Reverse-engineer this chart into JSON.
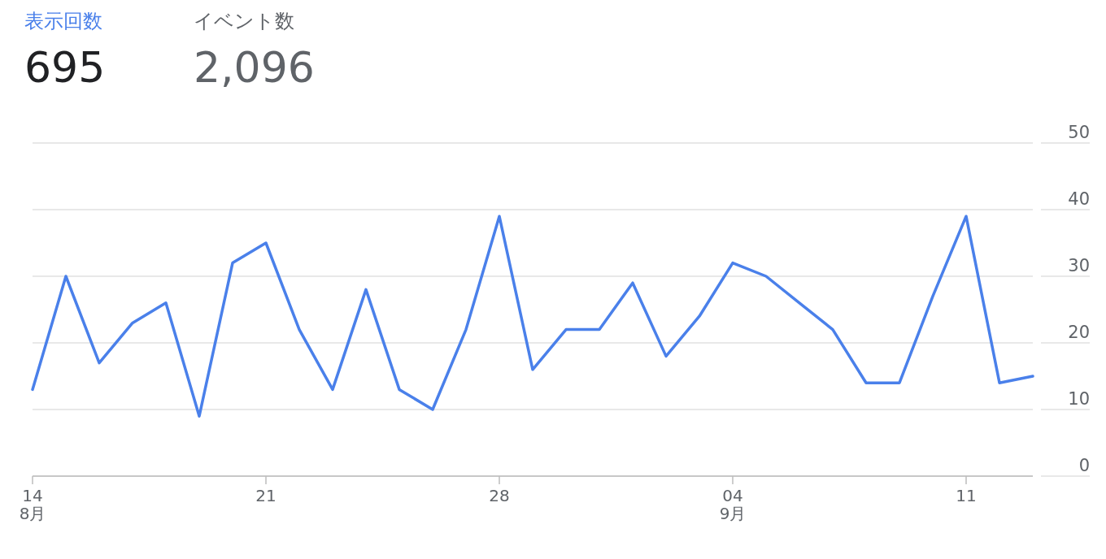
{
  "chart_data": {
    "type": "line",
    "annotations": [
      "表示回数",
      "695",
      "イベント数",
      "2,096"
    ],
    "x": [
      "--08-14",
      "--08-15",
      "--08-16",
      "--08-17",
      "--08-18",
      "--08-19",
      "--08-20",
      "--08-21",
      "--08-22",
      "--08-23",
      "--08-24",
      "--08-25",
      "--08-26",
      "--08-27",
      "--08-28",
      "--08-29",
      "--08-30",
      "--08-31",
      "--09-01",
      "--09-02",
      "--09-03",
      "--09-04",
      "--09-05",
      "--09-06",
      "--09-07",
      "--09-08",
      "--09-09",
      "--09-10",
      "--09-11",
      "--09-12",
      "--09-13"
    ],
    "series": [
      {
        "color": "#4a80ea",
        "values": [
          13,
          30,
          17,
          23,
          26,
          9,
          32,
          35,
          22,
          13,
          28,
          13,
          10,
          22,
          39,
          16,
          22,
          22,
          29,
          18,
          24,
          32,
          30,
          26,
          22,
          14,
          14,
          27,
          39,
          14,
          15
        ]
      }
    ],
    "xlim": [
      "--08-14",
      "--09-13"
    ],
    "xticks": [
      {
        "value": "--08-14",
        "label": "14\n8月"
      },
      {
        "value": "--08-21",
        "label": "21"
      },
      {
        "value": "--08-28",
        "label": "28"
      },
      {
        "value": "--09-04",
        "label": "04\n9月"
      },
      {
        "value": "--09-11",
        "label": "11"
      }
    ],
    "ylim": [
      0,
      50
    ],
    "yticks": [
      0,
      10,
      20,
      30,
      40,
      50
    ],
    "grid": "y",
    "line_style": "solid"
  }
}
